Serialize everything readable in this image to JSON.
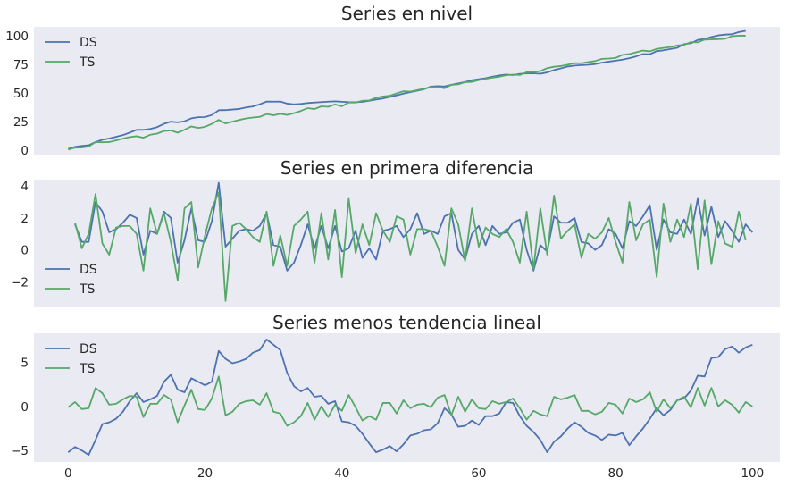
{
  "chart_data": [
    {
      "type": "line",
      "title": "Series en nivel",
      "ylim": [
        -4,
        108
      ],
      "yticks": [
        0,
        25,
        50,
        75,
        100
      ],
      "show_x_ticks": false,
      "legend": "top-left",
      "series": [
        {
          "name": "DS",
          "color": "#4c72b0",
          "values": [
            1.0,
            2.8,
            3.6,
            4.2,
            7.0,
            9.0,
            10.1,
            11.6,
            13.1,
            15.3,
            17.7,
            17.7,
            18.5,
            20.1,
            23.0,
            24.9,
            24.3,
            25.2,
            27.8,
            28.8,
            28.9,
            30.7,
            34.9,
            35.0,
            35.5,
            36.0,
            37.3,
            38.2,
            40.1,
            42.5,
            42.4,
            42.5,
            40.7,
            40.0,
            40.4,
            41.2,
            41.6,
            42.0,
            42.4,
            42.7,
            42.3,
            42.0,
            41.9,
            42.2,
            43.2,
            44.3,
            45.2,
            46.5,
            48.0,
            49.5,
            50.7,
            52.0,
            53.3,
            55.6,
            56.0,
            55.7,
            57.2,
            58.4,
            59.6,
            61.2,
            62.1,
            63.0,
            64.3,
            65.4,
            66.2,
            65.7,
            66.8,
            67.2,
            67.3,
            66.9,
            68.0,
            70.1,
            71.6,
            73.2,
            74.0,
            74.4,
            74.7,
            75.3,
            76.6,
            77.5,
            78.3,
            79.2,
            80.5,
            82.1,
            84.1,
            84.0,
            86.7,
            87.4,
            88.5,
            89.6,
            92.8,
            93.6,
            96.5,
            97.3,
            99.1,
            100.5,
            101.2,
            101.5,
            103.4,
            104.5
          ]
        },
        {
          "name": "TS",
          "color": "#55a868",
          "values": [
            0.4,
            2.1,
            2.2,
            3.2,
            7.0,
            6.8,
            7.0,
            8.4,
            10.0,
            11.4,
            12.1,
            10.8,
            13.4,
            14.4,
            16.7,
            17.2,
            15.2,
            17.8,
            20.7,
            19.4,
            20.3,
            23.0,
            26.4,
            23.3,
            24.9,
            26.4,
            27.7,
            28.5,
            29.1,
            31.5,
            30.5,
            31.7,
            30.8,
            32.3,
            34.3,
            36.7,
            35.9,
            38.3,
            37.9,
            40.0,
            38.4,
            41.7,
            41.6,
            43.2,
            43.5,
            45.8,
            47.0,
            47.6,
            49.7,
            51.5,
            51.2,
            52.5,
            53.8,
            55.0,
            55.2,
            54.2,
            57.1,
            57.6,
            59.5,
            59.7,
            61.3,
            62.5,
            63.5,
            64.3,
            65.6,
            66.1,
            65.8,
            68.2,
            68.4,
            69.2,
            71.8,
            73.0,
            73.6,
            74.8,
            76.2,
            76.1,
            77.1,
            78.0,
            79.9,
            80.2,
            80.7,
            83.4,
            84.1,
            85.7,
            87.2,
            86.5,
            88.6,
            89.5,
            90.3,
            91.6,
            92.2,
            94.6,
            94.4,
            96.8,
            97.0,
            97.2,
            97.5,
            99.8,
            100.2,
            100.2
          ]
        }
      ]
    },
    {
      "type": "line",
      "title": "Series en primera diferencia",
      "ylim": [
        -3.6,
        4.4
      ],
      "yticks": [
        -2,
        0,
        2,
        4
      ],
      "show_x_ticks": false,
      "legend": "bottom-left",
      "series": [
        {
          "name": "DS",
          "color": "#4c72b0",
          "values": [
            null,
            1.6,
            0.5,
            0.5,
            3.0,
            2.4,
            1.1,
            1.3,
            1.7,
            2.2,
            2.0,
            -0.3,
            1.2,
            1.0,
            2.4,
            2.0,
            -0.8,
            0.6,
            2.6,
            0.6,
            0.5,
            1.8,
            4.2,
            0.2,
            0.7,
            1.2,
            1.3,
            1.2,
            1.5,
            2.3,
            0.3,
            0.2,
            -1.3,
            -0.8,
            0.3,
            1.6,
            0.1,
            1.5,
            0.1,
            1.5,
            -0.1,
            0.1,
            1.2,
            -0.5,
            0.1,
            -0.6,
            1.2,
            1.3,
            1.5,
            0.8,
            1.3,
            2.3,
            1.0,
            1.2,
            1.0,
            2.1,
            2.3,
            0.0,
            -0.6,
            1.0,
            1.5,
            0.3,
            1.5,
            1.0,
            1.1,
            1.7,
            1.9,
            0.0,
            -1.3,
            0.3,
            -0.1,
            2.1,
            1.7,
            1.7,
            2.0,
            0.5,
            0.4,
            0.0,
            0.3,
            1.3,
            1.0,
            0.1,
            1.8,
            1.5,
            2.1,
            2.8,
            0.0,
            1.9,
            1.1,
            1.0,
            1.9,
            1.0,
            3.2,
            0.9,
            2.7,
            0.8,
            1.8,
            1.2,
            0.5,
            1.6,
            1.1
          ]
        },
        {
          "name": "TS",
          "color": "#55a868",
          "values": [
            null,
            1.7,
            0.1,
            1.0,
            3.5,
            0.4,
            -0.3,
            1.4,
            1.5,
            1.5,
            1.0,
            -1.3,
            2.6,
            1.0,
            2.3,
            0.5,
            -1.9,
            2.6,
            3.0,
            -1.1,
            0.9,
            2.6,
            3.6,
            -3.2,
            1.5,
            1.7,
            1.3,
            0.8,
            0.5,
            2.4,
            -1.0,
            0.9,
            -1.0,
            1.5,
            1.9,
            2.4,
            -0.8,
            2.3,
            -0.6,
            2.5,
            -1.7,
            3.2,
            -0.2,
            1.6,
            0.3,
            2.3,
            1.2,
            0.5,
            2.1,
            1.9,
            -0.3,
            1.3,
            1.3,
            1.2,
            0.2,
            -1.0,
            2.6,
            1.6,
            -0.7,
            2.6,
            0.2,
            1.4,
            1.0,
            0.8,
            1.3,
            0.5,
            -0.8,
            2.4,
            -1.2,
            2.6,
            -0.3,
            3.4,
            0.7,
            1.2,
            1.6,
            -0.5,
            1.0,
            0.7,
            1.1,
            2.0,
            0.5,
            -0.8,
            3.0,
            0.6,
            1.6,
            1.9,
            -1.7,
            2.9,
            0.5,
            1.9,
            0.8,
            2.9,
            -1.2,
            3.1,
            -0.9,
            1.8,
            0.4,
            0.2,
            2.4,
            0.6
          ]
        }
      ]
    },
    {
      "type": "line",
      "title": "Series menos tendencia lineal",
      "ylim": [
        -6.3,
        8.3
      ],
      "yticks": [
        -5,
        0,
        5
      ],
      "xticks": [
        0,
        20,
        40,
        60,
        80,
        100
      ],
      "show_x_ticks": true,
      "legend": "top-left",
      "series": [
        {
          "name": "DS",
          "color": "#4c72b0",
          "values": [
            -5.2,
            -4.6,
            -5.0,
            -5.5,
            -3.8,
            -2.0,
            -1.8,
            -1.4,
            -0.6,
            0.6,
            1.5,
            0.5,
            0.8,
            1.2,
            2.8,
            3.6,
            1.9,
            1.6,
            3.2,
            2.8,
            2.4,
            2.8,
            6.3,
            5.4,
            4.9,
            5.1,
            5.4,
            6.1,
            6.4,
            7.6,
            7.0,
            6.4,
            3.8,
            2.3,
            1.7,
            2.1,
            1.1,
            1.2,
            0.3,
            0.6,
            -1.7,
            -1.8,
            -2.2,
            -3.1,
            -4.2,
            -5.2,
            -4.9,
            -4.5,
            -5.1,
            -4.3,
            -3.3,
            -3.1,
            -2.7,
            -2.6,
            -1.9,
            -0.2,
            -0.9,
            -2.3,
            -2.2,
            -1.6,
            -2.1,
            -1.1,
            -1.1,
            -0.8,
            0.5,
            0.4,
            -1.1,
            -2.2,
            -2.9,
            -3.8,
            -5.2,
            -4.0,
            -3.4,
            -2.5,
            -1.8,
            -2.3,
            -3.0,
            -3.3,
            -3.8,
            -3.2,
            -3.3,
            -3.0,
            -4.4,
            -3.4,
            -2.5,
            -1.4,
            -0.2,
            -1.0,
            -0.4,
            0.7,
            0.9,
            1.8,
            3.5,
            3.4,
            5.5,
            5.6,
            6.5,
            6.8,
            6.1,
            6.7,
            7.0
          ]
        },
        {
          "name": "TS",
          "color": "#55a868",
          "values": [
            -0.1,
            0.5,
            -0.3,
            -0.2,
            2.1,
            1.5,
            0.2,
            0.3,
            0.8,
            1.2,
            1.1,
            -1.2,
            0.3,
            0.3,
            1.3,
            0.8,
            -1.8,
            0.1,
            1.9,
            -0.3,
            -0.4,
            0.9,
            3.4,
            -1.0,
            -0.6,
            0.3,
            0.6,
            0.7,
            0.2,
            1.5,
            -0.6,
            -0.8,
            -2.2,
            -1.8,
            -1.1,
            0.4,
            -1.5,
            0.0,
            -1.2,
            0.2,
            -0.5,
            1.3,
            -0.1,
            -1.6,
            -1.1,
            -1.5,
            0.4,
            0.4,
            -0.8,
            0.7,
            -0.2,
            0.2,
            0.3,
            -0.1,
            1.0,
            1.3,
            -1.0,
            1.1,
            -0.6,
            0.8,
            -0.2,
            -0.3,
            0.6,
            0.3,
            0.5,
            0.9,
            -0.2,
            -1.5,
            -0.5,
            -0.9,
            -1.1,
            1.1,
            0.8,
            1.0,
            1.3,
            -0.5,
            -0.5,
            -0.9,
            -0.6,
            0.4,
            0.2,
            -0.8,
            0.9,
            0.5,
            0.8,
            1.6,
            -0.6,
            0.8,
            -0.2,
            0.7,
            1.1,
            -0.1,
            2.1,
            0.1,
            2.1,
            0.0,
            0.7,
            0.2,
            -0.7,
            0.5,
            0.0
          ]
        }
      ]
    }
  ]
}
